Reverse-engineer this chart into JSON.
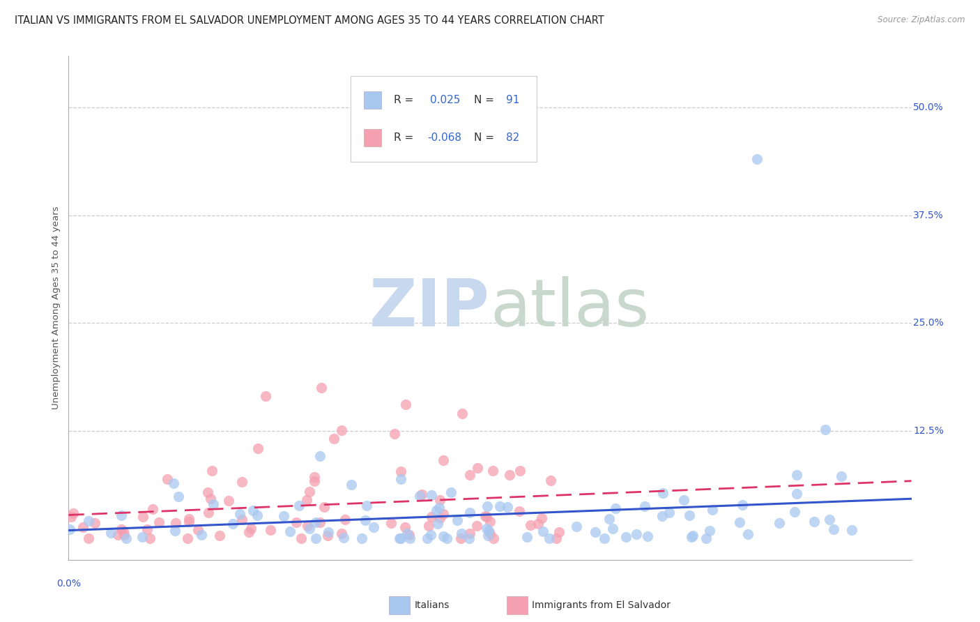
{
  "title": "ITALIAN VS IMMIGRANTS FROM EL SALVADOR UNEMPLOYMENT AMONG AGES 35 TO 44 YEARS CORRELATION CHART",
  "source": "Source: ZipAtlas.com",
  "ylabel": "Unemployment Among Ages 35 to 44 years",
  "ytick_labels": [
    "12.5%",
    "25.0%",
    "37.5%",
    "50.0%"
  ],
  "ytick_values": [
    0.125,
    0.25,
    0.375,
    0.5
  ],
  "xlim": [
    0.0,
    0.6
  ],
  "ylim": [
    -0.025,
    0.56
  ],
  "italians_R": 0.025,
  "italians_N": 91,
  "salvador_R": -0.068,
  "salvador_N": 82,
  "legend_entries": [
    "Italians",
    "Immigrants from El Salvador"
  ],
  "scatter_color_italian": "#a8c8f0",
  "scatter_color_salvador": "#f5a0b0",
  "line_color_italian": "#3355cc",
  "line_color_salvador": "#dd3366",
  "legend_R_color": "#3366cc",
  "watermark_zip": "ZIP",
  "watermark_atlas": "atlas",
  "watermark_color_zip": "#c8d8ee",
  "watermark_color_atlas": "#c8d8cc",
  "background_color": "#ffffff",
  "grid_color": "#cccccc",
  "title_fontsize": 10.5,
  "axis_label_fontsize": 9.5,
  "tick_fontsize": 10
}
